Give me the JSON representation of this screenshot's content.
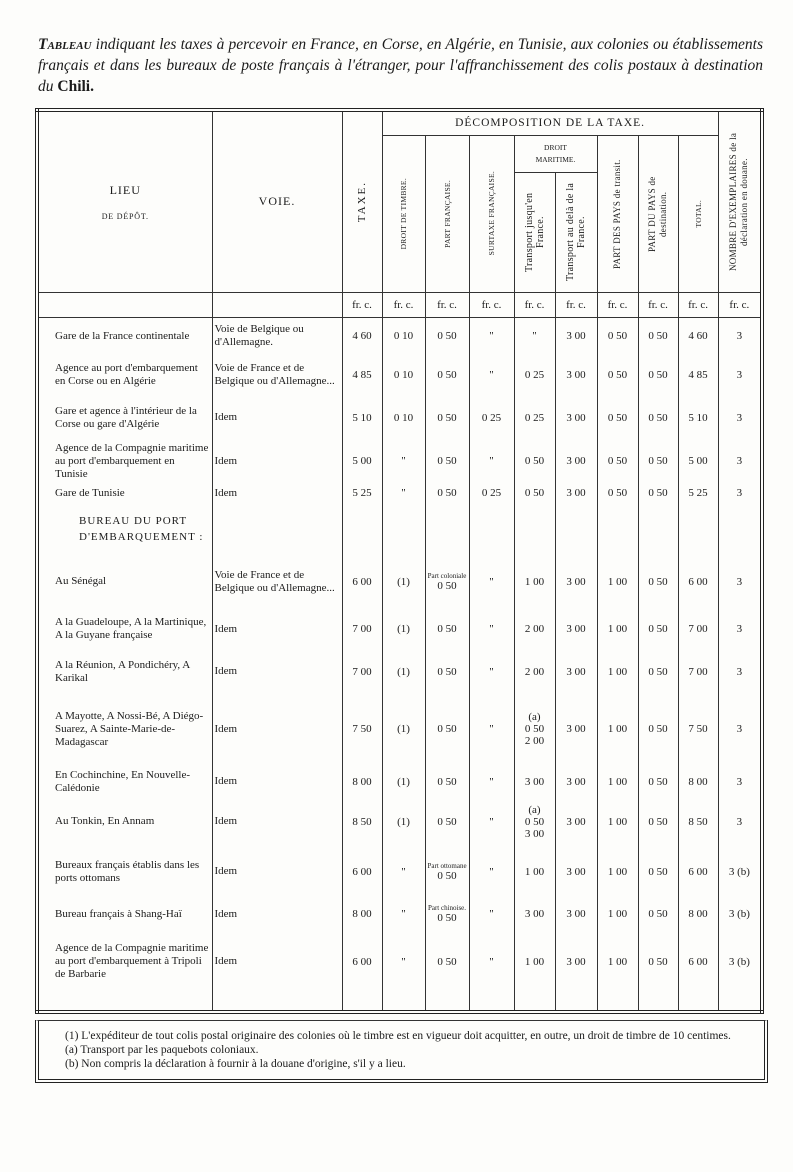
{
  "title": {
    "lead": "Tableau",
    "text": "indiquant les taxes à percevoir en France, en Corse, en Algérie, en Tunisie, aux colonies ou établissements français et dans les bureaux de poste français à l'étranger, pour l'affranchissement des colis postaux à destination du",
    "country": "Chili."
  },
  "table": {
    "header": {
      "lieu": "LIEU",
      "lieu_sub": "DE DÉPÔT.",
      "voie": "VOIE.",
      "taxe": "TAXE.",
      "decomposition": "DÉCOMPOSITION DE LA TAXE.",
      "droit_timbre": "DROIT DE TIMBRE.",
      "part_francaise": "PART FRANÇAISE.",
      "surtaxe": "SURTAXE FRANÇAISE.",
      "droit_maritime": "DROIT MARITIME.",
      "transport_france": "Transport jusqu'en France.",
      "transport_dela": "Transport au delà de la France.",
      "part_transit": "PART DES PAYS de transit.",
      "part_destination": "PART DU PAYS de destination.",
      "total": "TOTAL.",
      "nombre": "NOMBRE D'EXEMPLAIRES de la déclaration en douane."
    },
    "units": [
      "fr. c.",
      "fr. c.",
      "fr. c.",
      "fr. c.",
      "fr. c.",
      "fr. c.",
      "fr. c.",
      "fr. c.",
      "fr. c.",
      "fr. c."
    ],
    "rows": [
      {
        "lieu": "Gare de la France continentale",
        "voie": "Voie de Belgique ou d'Allemagne.",
        "cells": [
          "4 60",
          "0 10",
          "0 50",
          "\"",
          "\"",
          "3 00",
          "0 50",
          "0 50",
          "4 60",
          "3"
        ]
      },
      {
        "lieu": "Agence au port d'embarquement en Corse ou en Algérie",
        "voie": "Voie de France et de Belgique ou d'Allemagne...",
        "cells": [
          "4 85",
          "0 10",
          "0 50",
          "\"",
          "0 25",
          "3 00",
          "0 50",
          "0 50",
          "4 85",
          "3"
        ]
      },
      {
        "lieu": "Gare et agence à l'intérieur de la Corse ou gare d'Algérie",
        "voie": "Idem",
        "cells": [
          "5 10",
          "0 10",
          "0 50",
          "0 25",
          "0 25",
          "3 00",
          "0 50",
          "0 50",
          "5 10",
          "3"
        ]
      },
      {
        "lieu": "Agence de la Compagnie maritime au port d'embarquement en Tunisie",
        "voie": "Idem",
        "cells": [
          "5 00",
          "\"",
          "0 50",
          "\"",
          "0 50",
          "3 00",
          "0 50",
          "0 50",
          "5 00",
          "3"
        ]
      },
      {
        "lieu": "Gare de Tunisie",
        "voie": "Idem",
        "cells": [
          "5 25",
          "\"",
          "0 50",
          "0 25",
          "0 50",
          "3 00",
          "0 50",
          "0 50",
          "5 25",
          "3"
        ]
      },
      {
        "section": "BUREAU DU PORT D'EMBARQUEMENT :"
      },
      {
        "lieu": "Au Sénégal",
        "voie": "Voie de France et de Belgique ou d'Allemagne...",
        "part_note": "Part coloniale",
        "cells": [
          "6 00",
          "(1)",
          "0 50",
          "\"",
          "1 00",
          "3 00",
          "1 00",
          "0 50",
          "6 00",
          "3"
        ]
      },
      {
        "lieu": "A la Guadeloupe, A la Martinique, A la Guyane française",
        "voie": "Idem",
        "cells": [
          "7 00",
          "(1)",
          "0 50",
          "\"",
          "2 00",
          "3 00",
          "1 00",
          "0 50",
          "7 00",
          "3"
        ]
      },
      {
        "lieu": "A la Réunion, A Pondichéry, A Karikal",
        "voie": "Idem",
        "cells": [
          "7 00",
          "(1)",
          "0 50",
          "\"",
          "2 00",
          "3 00",
          "1 00",
          "0 50",
          "7 00",
          "3"
        ]
      },
      {
        "lieu": "A Mayotte, A Nossi-Bé, A Diégo-Suarez, A Sainte-Marie-de-Madagascar",
        "voie": "Idem",
        "cells": [
          "7 50",
          "(1)",
          "0 50",
          "\"",
          [
            "(a)",
            "0 50",
            "2 00"
          ],
          "3 00",
          "1 00",
          "0 50",
          "7 50",
          "3"
        ]
      },
      {
        "lieu": "En Cochinchine, En Nouvelle-Calédonie",
        "voie": "Idem",
        "cells": [
          "8 00",
          "(1)",
          "0 50",
          "\"",
          "3 00",
          "3 00",
          "1 00",
          "0 50",
          "8 00",
          "3"
        ]
      },
      {
        "lieu": "Au Tonkin, En Annam",
        "voie": "Idem",
        "cells": [
          "8 50",
          "(1)",
          "0 50",
          "\"",
          [
            "(a)",
            "0 50",
            "3 00"
          ],
          "3 00",
          "1 00",
          "0 50",
          "8 50",
          "3"
        ]
      },
      {
        "lieu": "Bureaux français établis dans les ports ottomans",
        "voie": "Idem",
        "part_note": "Part ottomane",
        "cells": [
          "6 00",
          "\"",
          "0 50",
          "\"",
          "1 00",
          "3 00",
          "1 00",
          "0 50",
          "6 00",
          "3 (b)"
        ]
      },
      {
        "lieu": "Bureau français à Shang-Haï",
        "voie": "Idem",
        "part_note": "Part chinoise.",
        "cells": [
          "8 00",
          "\"",
          "0 50",
          "\"",
          "3 00",
          "3 00",
          "1 00",
          "0 50",
          "8 00",
          "3 (b)"
        ]
      },
      {
        "lieu": "Agence de la Compagnie maritime au port d'embarquement à Tripoli de Barbarie",
        "voie": "Idem",
        "cells": [
          "6 00",
          "\"",
          "0 50",
          "\"",
          "1 00",
          "3 00",
          "1 00",
          "0 50",
          "6 00",
          "3 (b)"
        ]
      }
    ]
  },
  "footnotes": [
    "(1) L'expéditeur de tout colis postal originaire des colonies où le timbre est en vigueur doit acquitter, en outre, un droit de timbre de 10 centimes.",
    "(a) Transport par les paquebots coloniaux.",
    "(b) Non compris la déclaration à fournir à la douane d'origine, s'il y a lieu."
  ]
}
